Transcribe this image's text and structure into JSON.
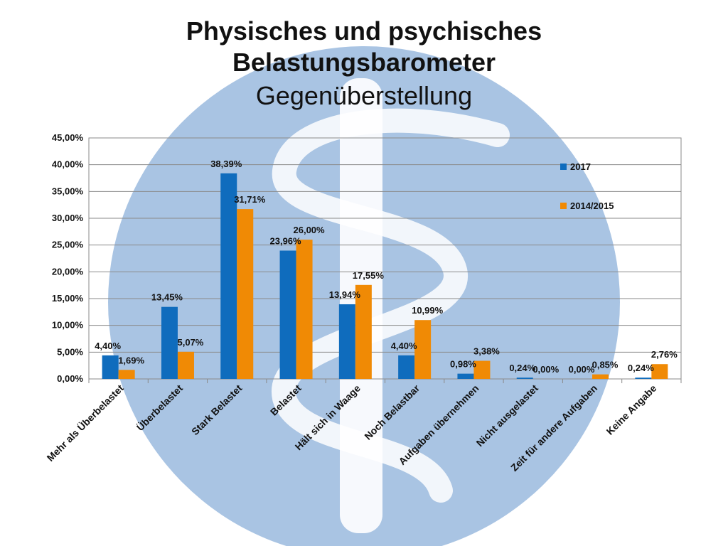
{
  "title_line1": "Physisches und psychisches",
  "title_line2": "Belastungsbarometer",
  "subtitle": "Gegenüberstellung",
  "colors": {
    "series_2017": "#0F6CBD",
    "series_2014_2015": "#F08A05",
    "backdrop_circle": "#A9C4E3",
    "backdrop_staff": "#FFFFFF"
  },
  "chart_data": {
    "type": "bar",
    "categories": [
      "Mehr als Überbelastet",
      "Überbelastet",
      "Stark Belastet",
      "Belastet",
      "Hält sich in Waage",
      "Noch Belastbar",
      "Aufgaben übernehmen",
      "Nicht ausgelastet",
      "Zeit für andere Aufgaben",
      "Keine Angabe"
    ],
    "series": [
      {
        "name": "2017",
        "values": [
          4.4,
          13.45,
          38.39,
          23.96,
          13.94,
          4.4,
          0.98,
          0.24,
          0.0,
          0.24
        ],
        "labels": [
          "4,40%",
          "13,45%",
          "38,39%",
          "23,96%",
          "13,94%",
          "4,40%",
          "0,98%",
          "0,24%",
          "0,00%",
          "0,24%"
        ]
      },
      {
        "name": "2014/2015",
        "values": [
          1.69,
          5.07,
          31.71,
          26.0,
          17.55,
          10.99,
          3.38,
          0.0,
          0.85,
          2.76
        ],
        "labels": [
          "1,69%",
          "5,07%",
          "31,71%",
          "26,00%",
          "17,55%",
          "10,99%",
          "3,38%",
          "0,00%",
          "0,85%",
          "2,76%"
        ]
      }
    ],
    "ylim": [
      0,
      45
    ],
    "yticks": [
      0,
      5,
      10,
      15,
      20,
      25,
      30,
      35,
      40,
      45
    ],
    "ytick_labels": [
      "0,00%",
      "5,00%",
      "10,00%",
      "15,00%",
      "20,00%",
      "25,00%",
      "30,00%",
      "35,00%",
      "40,00%",
      "45,00%"
    ],
    "grid": true,
    "legend": "top-right"
  }
}
